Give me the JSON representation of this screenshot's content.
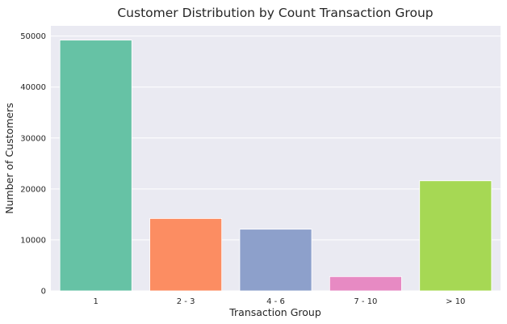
{
  "chart_data": {
    "type": "bar",
    "title": "Customer Distribution by Count Transaction Group",
    "xlabel": "Transaction Group",
    "ylabel": "Number of Customers",
    "categories": [
      "1",
      "2 - 3",
      "4 - 6",
      "7 - 10",
      "> 10"
    ],
    "values": [
      49200,
      14200,
      12100,
      2800,
      21600
    ],
    "colors": [
      "#66c2a5",
      "#fc8d62",
      "#8da0cb",
      "#e78ac3",
      "#a6d854"
    ],
    "ylim": [
      0,
      52000
    ],
    "yticks": [
      0,
      10000,
      20000,
      30000,
      40000,
      50000
    ],
    "grid": true,
    "background": "#eaeaf2"
  }
}
